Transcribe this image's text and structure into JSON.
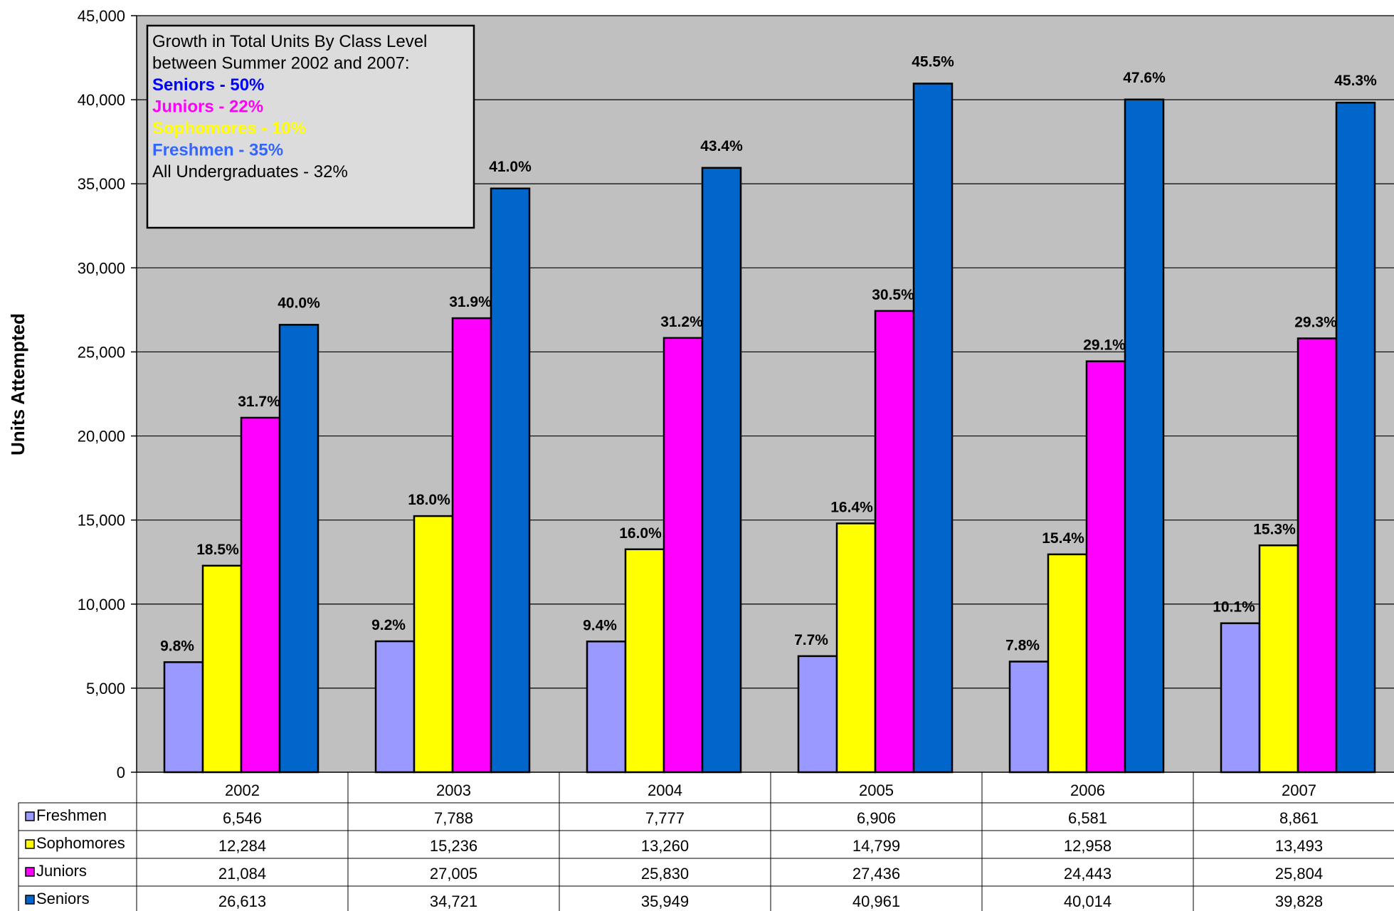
{
  "chart_data": {
    "type": "bar",
    "ylabel": "Units Attempted",
    "xlabel": "",
    "ylim": [
      0,
      45000
    ],
    "yticks": [
      0,
      5000,
      10000,
      15000,
      20000,
      25000,
      30000,
      35000,
      40000,
      45000
    ],
    "ytick_labels": [
      "0",
      "5,000",
      "10,000",
      "15,000",
      "20,000",
      "25,000",
      "30,000",
      "35,000",
      "40,000",
      "45,000"
    ],
    "grid": true,
    "plot_background": "#C0C0C0",
    "categories": [
      "2002",
      "2003",
      "2004",
      "2005",
      "2006",
      "2007"
    ],
    "series": [
      {
        "name": "Freshmen",
        "color": "#9999FF",
        "values": [
          6546,
          7788,
          7777,
          6906,
          6581,
          8861
        ],
        "value_labels": [
          "6,546",
          "7,788",
          "7,777",
          "6,906",
          "6,581",
          "8,861"
        ],
        "pct_labels": [
          "9.8%",
          "9.2%",
          "9.4%",
          "7.7%",
          "7.8%",
          "10.1%"
        ]
      },
      {
        "name": "Sophomores",
        "color": "#FFFF00",
        "values": [
          12284,
          15236,
          13260,
          14799,
          12958,
          13493
        ],
        "value_labels": [
          "12,284",
          "15,236",
          "13,260",
          "14,799",
          "12,958",
          "13,493"
        ],
        "pct_labels": [
          "18.5%",
          "18.0%",
          "16.0%",
          "16.4%",
          "15.4%",
          "15.3%"
        ]
      },
      {
        "name": "Juniors",
        "color": "#FF00FF",
        "values": [
          21084,
          27005,
          25830,
          27436,
          24443,
          25804
        ],
        "value_labels": [
          "21,084",
          "27,005",
          "25,830",
          "27,436",
          "24,443",
          "25,804"
        ],
        "pct_labels": [
          "31.7%",
          "31.9%",
          "31.2%",
          "30.5%",
          "29.1%",
          "29.3%"
        ]
      },
      {
        "name": "Seniors",
        "color": "#0066CC",
        "values": [
          26613,
          34721,
          35949,
          40961,
          40014,
          39828
        ],
        "value_labels": [
          "26,613",
          "34,721",
          "35,949",
          "40,961",
          "40,014",
          "39,828"
        ],
        "pct_labels": [
          "40.0%",
          "41.0%",
          "43.4%",
          "45.5%",
          "47.6%",
          "45.3%"
        ]
      }
    ],
    "annotation": {
      "lines": [
        {
          "text": "Growth in Total Units By Class Level",
          "color": "#000000",
          "bold": false
        },
        {
          "text": "between Summer 2002 and 2007:",
          "color": "#000000",
          "bold": false
        },
        {
          "text": "Seniors - 50%",
          "color": "#0000FF",
          "bold": true
        },
        {
          "text": "Juniors - 22%",
          "color": "#FF00FF",
          "bold": true
        },
        {
          "text": "Sophomores - 10%",
          "color": "#FFFF00",
          "bold": true
        },
        {
          "text": "Freshmen -  35%",
          "color": "#3366FF",
          "bold": true
        },
        {
          "text": "All Undergraduates - 32%",
          "color": "#000000",
          "bold": false
        }
      ]
    }
  }
}
